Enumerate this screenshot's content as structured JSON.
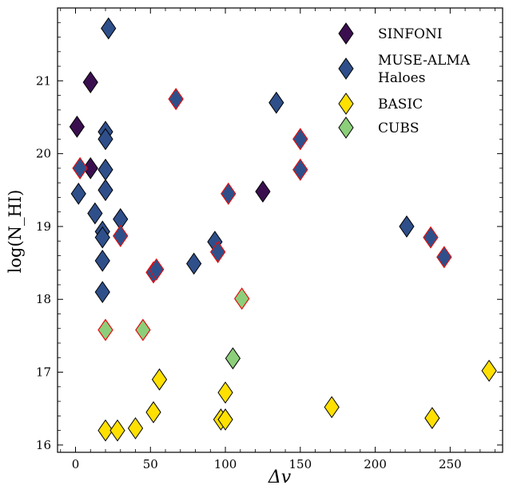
{
  "chart_data": {
    "type": "scatter",
    "title": "",
    "xlabel": "Δv",
    "ylabel": "log(N_HI)",
    "xlim": [
      -12,
      285
    ],
    "ylim": [
      15.9,
      22.0
    ],
    "xticks": [
      0,
      50,
      100,
      150,
      200,
      250
    ],
    "yticks": [
      16,
      17,
      18,
      19,
      20,
      21
    ],
    "grid": false,
    "legend_position": "top-right",
    "series": [
      {
        "name": "SINFONI",
        "color": "#3b0f4f",
        "points": [
          [
            1,
            20.37
          ],
          [
            10,
            20.98
          ],
          [
            10,
            19.8
          ],
          [
            125,
            19.48
          ]
        ]
      },
      {
        "name": "MUSE-ALMA Haloes",
        "color": "#2f4f8a",
        "points": [
          [
            22,
            21.72
          ],
          [
            20,
            20.3
          ],
          [
            20,
            20.2
          ],
          [
            20,
            19.78
          ],
          [
            20,
            19.5
          ],
          [
            2,
            19.45
          ],
          [
            13,
            19.18
          ],
          [
            30,
            19.1
          ],
          [
            18,
            18.93
          ],
          [
            18,
            18.85
          ],
          [
            18,
            18.53
          ],
          [
            18,
            18.1
          ],
          [
            79,
            18.49
          ],
          [
            93,
            18.79
          ],
          [
            134,
            20.7
          ],
          [
            221,
            19.0
          ]
        ],
        "highlighted": [
          [
            3,
            19.8
          ],
          [
            30,
            18.87
          ],
          [
            67,
            20.75
          ],
          [
            102,
            19.45
          ],
          [
            150,
            20.2
          ],
          [
            150,
            19.78
          ],
          [
            95,
            18.65
          ],
          [
            52,
            18.37
          ],
          [
            54,
            18.41
          ],
          [
            237,
            18.85
          ],
          [
            246,
            18.58
          ]
        ]
      },
      {
        "name": "BASIC",
        "color": "#ffe000",
        "points": [
          [
            20,
            16.2
          ],
          [
            28,
            16.2
          ],
          [
            40,
            16.23
          ],
          [
            52,
            16.45
          ],
          [
            56,
            16.9
          ],
          [
            97,
            16.35
          ],
          [
            100,
            16.35
          ],
          [
            100,
            16.72
          ],
          [
            171,
            16.52
          ],
          [
            238,
            16.37
          ],
          [
            276,
            17.02
          ]
        ]
      },
      {
        "name": "CUBS",
        "color": "#8ccf7a",
        "points": [
          [
            105,
            17.19
          ]
        ],
        "highlighted": [
          [
            20,
            17.58
          ],
          [
            45,
            17.58
          ],
          [
            111,
            18.01
          ]
        ]
      }
    ]
  }
}
